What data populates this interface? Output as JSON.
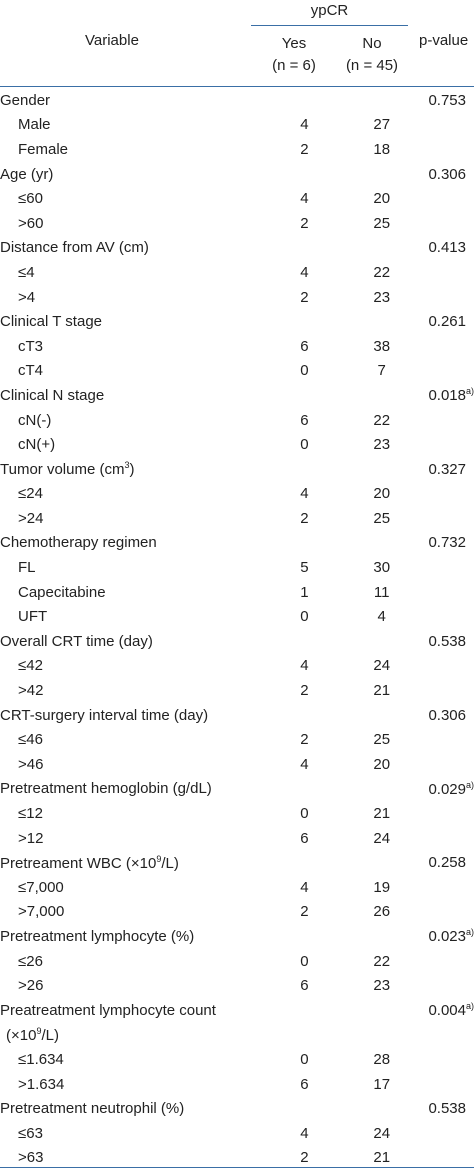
{
  "header": {
    "variable": "Variable",
    "ypcr": "ypCR",
    "yes": "Yes",
    "yes_n": "(n = 6)",
    "no": "No",
    "no_n": "(n = 45)",
    "pvalue": "p-value"
  },
  "rows": [
    {
      "label": "Gender",
      "sub": false,
      "yes": "",
      "no": "",
      "p": "0.753",
      "sup": ""
    },
    {
      "label": "Male",
      "sub": true,
      "yes": "4",
      "no": "27",
      "p": "",
      "sup": ""
    },
    {
      "label": "Female",
      "sub": true,
      "yes": "2",
      "no": "18",
      "p": "",
      "sup": ""
    },
    {
      "label": "Age (yr)",
      "sub": false,
      "yes": "",
      "no": "",
      "p": "0.306",
      "sup": ""
    },
    {
      "label": "≤60",
      "sub": true,
      "yes": "4",
      "no": "20",
      "p": "",
      "sup": ""
    },
    {
      "label": ">60",
      "sub": true,
      "yes": "2",
      "no": "25",
      "p": "",
      "sup": ""
    },
    {
      "label": "Distance from AV (cm)",
      "sub": false,
      "yes": "",
      "no": "",
      "p": "0.413",
      "sup": ""
    },
    {
      "label": "≤4",
      "sub": true,
      "yes": "4",
      "no": "22",
      "p": "",
      "sup": ""
    },
    {
      "label": ">4",
      "sub": true,
      "yes": "2",
      "no": "23",
      "p": "",
      "sup": ""
    },
    {
      "label": "Clinical T stage",
      "sub": false,
      "yes": "",
      "no": "",
      "p": "0.261",
      "sup": ""
    },
    {
      "label": "cT3",
      "sub": true,
      "yes": "6",
      "no": "38",
      "p": "",
      "sup": ""
    },
    {
      "label": "cT4",
      "sub": true,
      "yes": "0",
      "no": "7",
      "p": "",
      "sup": ""
    },
    {
      "label": "Clinical N stage",
      "sub": false,
      "yes": "",
      "no": "",
      "p": "0.018",
      "sup": "a)"
    },
    {
      "label": "cN(-)",
      "sub": true,
      "yes": "6",
      "no": "22",
      "p": "",
      "sup": ""
    },
    {
      "label": "cN(+)",
      "sub": true,
      "yes": "0",
      "no": "23",
      "p": "",
      "sup": ""
    },
    {
      "label": "Tumor volume (cm",
      "labelSup": "3",
      "labelEnd": ")",
      "sub": false,
      "yes": "",
      "no": "",
      "p": "0.327",
      "sup": ""
    },
    {
      "label": "≤24",
      "sub": true,
      "yes": "4",
      "no": "20",
      "p": "",
      "sup": ""
    },
    {
      "label": ">24",
      "sub": true,
      "yes": "2",
      "no": "25",
      "p": "",
      "sup": ""
    },
    {
      "label": "Chemotherapy regimen",
      "sub": false,
      "yes": "",
      "no": "",
      "p": "0.732",
      "sup": ""
    },
    {
      "label": "FL",
      "sub": true,
      "yes": "5",
      "no": "30",
      "p": "",
      "sup": ""
    },
    {
      "label": "Capecitabine",
      "sub": true,
      "yes": "1",
      "no": "11",
      "p": "",
      "sup": ""
    },
    {
      "label": "UFT",
      "sub": true,
      "yes": "0",
      "no": "4",
      "p": "",
      "sup": ""
    },
    {
      "label": "Overall CRT time (day)",
      "sub": false,
      "yes": "",
      "no": "",
      "p": "0.538",
      "sup": ""
    },
    {
      "label": "≤42",
      "sub": true,
      "yes": "4",
      "no": "24",
      "p": "",
      "sup": ""
    },
    {
      "label": ">42",
      "sub": true,
      "yes": "2",
      "no": "21",
      "p": "",
      "sup": ""
    },
    {
      "label": "CRT-surgery interval time (day)",
      "sub": false,
      "yes": "",
      "no": "",
      "p": "0.306",
      "sup": ""
    },
    {
      "label": "≤46",
      "sub": true,
      "yes": "2",
      "no": "25",
      "p": "",
      "sup": ""
    },
    {
      "label": ">46",
      "sub": true,
      "yes": "4",
      "no": "20",
      "p": "",
      "sup": ""
    },
    {
      "label": "Pretreatment hemoglobin (g/dL)",
      "sub": false,
      "yes": "",
      "no": "",
      "p": "0.029",
      "sup": "a)"
    },
    {
      "label": "≤12",
      "sub": true,
      "yes": "0",
      "no": "21",
      "p": "",
      "sup": ""
    },
    {
      "label": ">12",
      "sub": true,
      "yes": "6",
      "no": "24",
      "p": "",
      "sup": ""
    },
    {
      "label": "Pretreament WBC (×10",
      "labelSup": "9",
      "labelEnd": "/L)",
      "sub": false,
      "yes": "",
      "no": "",
      "p": "0.258",
      "sup": ""
    },
    {
      "label": "≤7,000",
      "sub": true,
      "yes": "4",
      "no": "19",
      "p": "",
      "sup": ""
    },
    {
      "label": ">7,000",
      "sub": true,
      "yes": "2",
      "no": "26",
      "p": "",
      "sup": ""
    },
    {
      "label": "Pretreatment lymphocyte (%)",
      "sub": false,
      "yes": "",
      "no": "",
      "p": "0.023",
      "sup": "a)"
    },
    {
      "label": "≤26",
      "sub": true,
      "yes": "0",
      "no": "22",
      "p": "",
      "sup": ""
    },
    {
      "label": ">26",
      "sub": true,
      "yes": "6",
      "no": "23",
      "p": "",
      "sup": ""
    },
    {
      "label": "Preatreatment lymphocyte count",
      "sub": false,
      "yes": "",
      "no": "",
      "p": "0.004",
      "sup": "a)"
    },
    {
      "label": "(×10",
      "labelSup": "9",
      "labelEnd": "/L)",
      "sub": true,
      "indent": 6,
      "yes": "",
      "no": "",
      "p": "",
      "sup": ""
    },
    {
      "label": "≤1.634",
      "sub": true,
      "yes": "0",
      "no": "28",
      "p": "",
      "sup": ""
    },
    {
      "label": ">1.634",
      "sub": true,
      "yes": "6",
      "no": "17",
      "p": "",
      "sup": ""
    },
    {
      "label": "Pretreatment neutrophil (%)",
      "sub": false,
      "yes": "",
      "no": "",
      "p": "0.538",
      "sup": ""
    },
    {
      "label": "≤63",
      "sub": true,
      "yes": "4",
      "no": "24",
      "p": "",
      "sup": ""
    },
    {
      "label": ">63",
      "sub": true,
      "yes": "2",
      "no": "21",
      "p": "",
      "sup": ""
    }
  ]
}
